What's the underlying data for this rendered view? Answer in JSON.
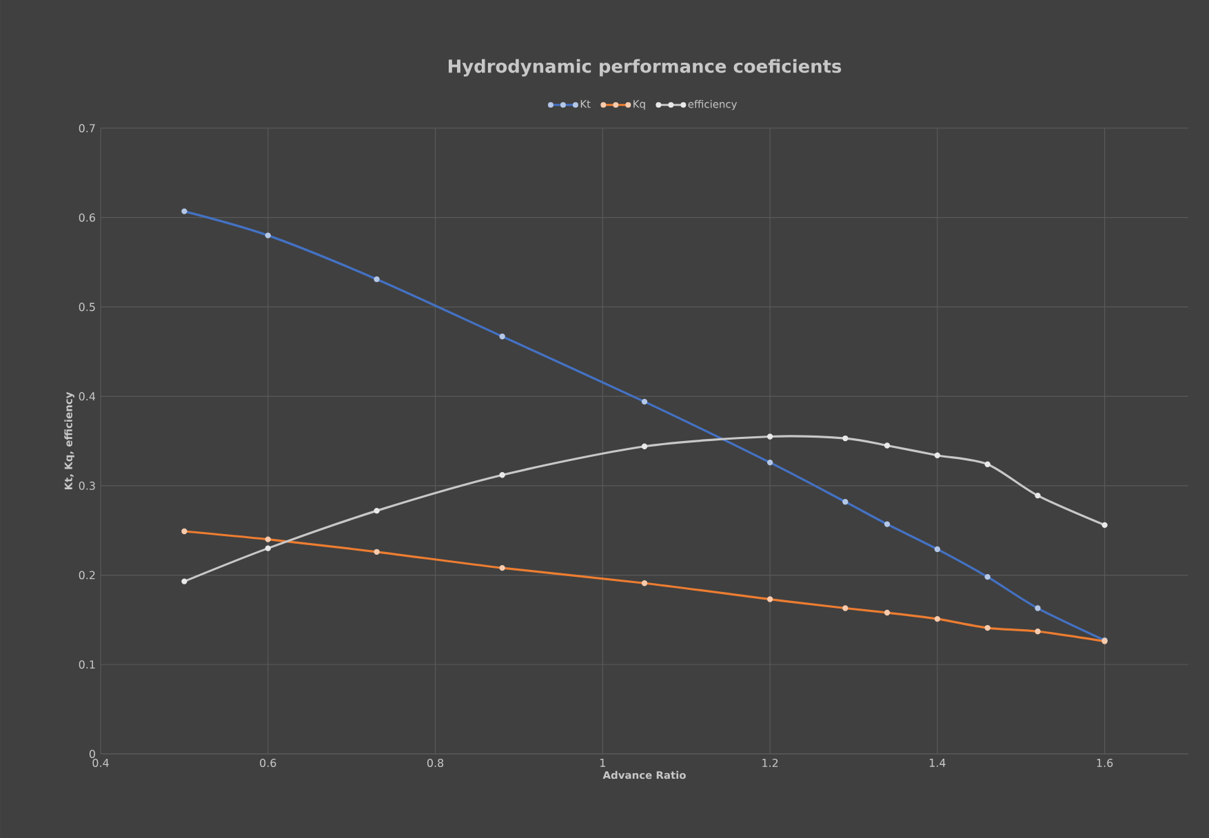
{
  "chart_data": {
    "type": "line",
    "title": "Hydrodynamic performance coeficients",
    "xlabel": "Advance Ratio",
    "ylabel": "Kt, Kq, efficiency",
    "x": [
      0.5,
      0.6,
      0.73,
      0.88,
      1.05,
      1.2,
      1.29,
      1.34,
      1.4,
      1.46,
      1.52,
      1.6
    ],
    "series": [
      {
        "name": "Kt",
        "color": "#4472c4",
        "values": [
          0.607,
          0.58,
          0.531,
          0.467,
          0.394,
          0.326,
          0.282,
          0.257,
          0.229,
          0.198,
          0.163,
          0.127
        ]
      },
      {
        "name": "Kq",
        "color": "#ed7d31",
        "values": [
          0.249,
          0.24,
          0.226,
          0.208,
          0.191,
          0.173,
          0.163,
          0.158,
          0.151,
          0.141,
          0.137,
          0.126
        ]
      },
      {
        "name": "efficiency",
        "color": "#c8c8c8",
        "values": [
          0.193,
          0.23,
          0.272,
          0.312,
          0.344,
          0.355,
          0.353,
          0.345,
          0.334,
          0.324,
          0.289,
          0.256
        ]
      }
    ],
    "xlim": [
      0.4,
      1.7
    ],
    "xticks": [
      0.4,
      0.6,
      0.8,
      {
        "value": 1,
        "label": "1"
      },
      1.2,
      1.4,
      1.6
    ],
    "ylim": [
      0,
      0.7
    ],
    "yticks": [
      {
        "value": 0,
        "label": "0"
      },
      0.1,
      0.2,
      0.3,
      0.4,
      0.5,
      0.6,
      0.7
    ],
    "grid": true,
    "legend": "top",
    "marker": "circle",
    "line_style": "solid"
  }
}
